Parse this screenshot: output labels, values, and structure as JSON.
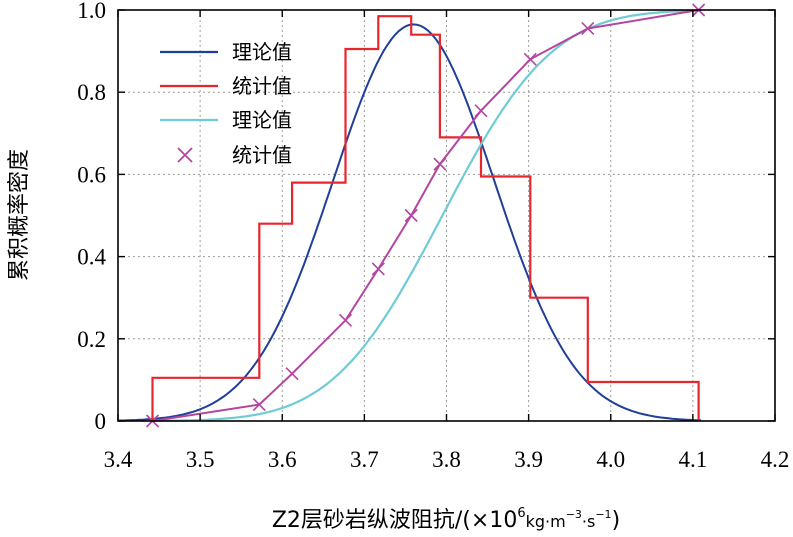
{
  "chart_data": {
    "type": "line",
    "title": "",
    "xlabel": {
      "main": "Z2层砂岩纵波阻抗/(×10",
      "exp": "6",
      "unit": "kg·m",
      "unit_exp": "−3",
      "unit_tail": "·s",
      "unit_tail_exp": "−1",
      "close": ")"
    },
    "ylabel": "累积概率密度",
    "xlim": [
      3.4,
      4.2
    ],
    "ylim": [
      0,
      1.0
    ],
    "xticks": [
      3.4,
      3.5,
      3.6,
      3.7,
      3.8,
      3.9,
      4.0,
      4.1,
      4.2
    ],
    "xtick_labels": [
      "3.4",
      "3.5",
      "3.6",
      "3.7",
      "3.8",
      "3.9",
      "4.0",
      "4.1",
      "4.2"
    ],
    "yticks": [
      0,
      0.2,
      0.4,
      0.6,
      0.8,
      1.0
    ],
    "ytick_labels": [
      "0",
      "0.2",
      "0.4",
      "0.6",
      "0.8",
      "1.0"
    ],
    "grid": true,
    "legend_position": "top-left",
    "series": [
      {
        "name": "理论值",
        "kind": "normal_pdf_scaled",
        "color": "#1f3f99",
        "mean": 3.76,
        "sd": 0.098,
        "peak": 0.965,
        "x_start": 3.4,
        "x_end": 4.11
      },
      {
        "name": "统计值",
        "kind": "step",
        "color": "#e8262e",
        "edges": [
          3.442,
          3.572,
          3.612,
          3.677,
          3.717,
          3.757,
          3.792,
          3.842,
          3.902,
          3.972,
          4.107
        ],
        "values": [
          0.105,
          0.48,
          0.58,
          0.905,
          0.985,
          0.94,
          0.69,
          0.595,
          0.3,
          0.095
        ]
      },
      {
        "name": "理论值",
        "kind": "normal_cdf",
        "color": "#6fcbd6",
        "mean": 3.795,
        "sd": 0.105,
        "x_start": 3.442,
        "x_end": 4.11
      },
      {
        "name": "统计值",
        "kind": "scatter_line",
        "color": "#b5469f",
        "x": [
          3.442,
          3.572,
          3.612,
          3.677,
          3.717,
          3.757,
          3.792,
          3.842,
          3.902,
          3.972,
          4.107
        ],
        "y": [
          0.0,
          0.04,
          0.115,
          0.245,
          0.37,
          0.5,
          0.625,
          0.755,
          0.88,
          0.955,
          1.0
        ]
      }
    ]
  }
}
